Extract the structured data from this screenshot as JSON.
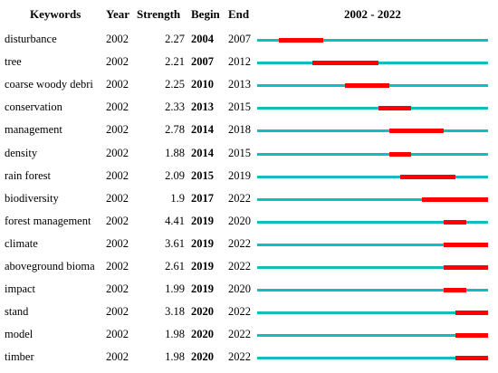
{
  "colors": {
    "baseline": "#14bdbd",
    "burst": "#ff0000"
  },
  "header": {
    "keywords": "Keywords",
    "year": "Year",
    "strength": "Strength",
    "begin": "Begin",
    "end": "End",
    "range": "2002 - 2022"
  },
  "chart_data": {
    "type": "table",
    "title": "",
    "x_range": [
      2002,
      2022
    ],
    "columns": [
      "Keywords",
      "Year",
      "Strength",
      "Begin",
      "End",
      "2002 - 2022"
    ],
    "rows": [
      {
        "keyword": "disturbance",
        "year": "2002",
        "strength": "2.27",
        "begin": "2004",
        "end": "2007"
      },
      {
        "keyword": "tree",
        "year": "2002",
        "strength": "2.21",
        "begin": "2007",
        "end": "2012"
      },
      {
        "keyword": "coarse woody debri",
        "year": "2002",
        "strength": "2.25",
        "begin": "2010",
        "end": "2013"
      },
      {
        "keyword": "conservation",
        "year": "2002",
        "strength": "2.33",
        "begin": "2013",
        "end": "2015"
      },
      {
        "keyword": "management",
        "year": "2002",
        "strength": "2.78",
        "begin": "2014",
        "end": "2018"
      },
      {
        "keyword": "density",
        "year": "2002",
        "strength": "1.88",
        "begin": "2014",
        "end": "2015"
      },
      {
        "keyword": "rain forest",
        "year": "2002",
        "strength": "2.09",
        "begin": "2015",
        "end": "2019"
      },
      {
        "keyword": "biodiversity",
        "year": "2002",
        "strength": "1.9",
        "begin": "2017",
        "end": "2022"
      },
      {
        "keyword": "forest management",
        "year": "2002",
        "strength": "4.41",
        "begin": "2019",
        "end": "2020"
      },
      {
        "keyword": "climate",
        "year": "2002",
        "strength": "3.61",
        "begin": "2019",
        "end": "2022"
      },
      {
        "keyword": "aboveground bioma",
        "year": "2002",
        "strength": "2.61",
        "begin": "2019",
        "end": "2022"
      },
      {
        "keyword": "impact",
        "year": "2002",
        "strength": "1.99",
        "begin": "2019",
        "end": "2020"
      },
      {
        "keyword": "stand",
        "year": "2002",
        "strength": "3.18",
        "begin": "2020",
        "end": "2022"
      },
      {
        "keyword": "model",
        "year": "2002",
        "strength": "1.98",
        "begin": "2020",
        "end": "2022"
      },
      {
        "keyword": "timber",
        "year": "2002",
        "strength": "1.98",
        "begin": "2020",
        "end": "2022"
      }
    ]
  }
}
